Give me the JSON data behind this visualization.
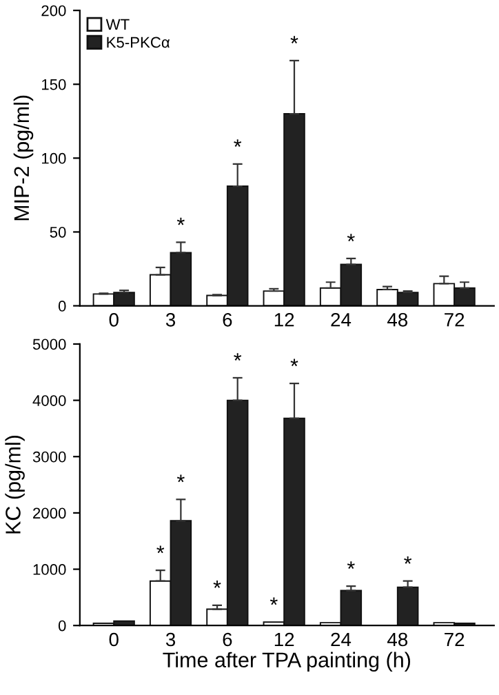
{
  "chart_data": [
    {
      "type": "bar",
      "ylabel": "MIP-2 (pg/ml)",
      "categories": [
        "0",
        "3",
        "6",
        "12",
        "24",
        "48",
        "72"
      ],
      "ylim": [
        0,
        200
      ],
      "yticks": [
        0,
        50,
        100,
        150,
        200
      ],
      "legend": "top left",
      "grid": false,
      "series": [
        {
          "name": "WT",
          "color": "#ffffff",
          "values": [
            8,
            21,
            7,
            10,
            12,
            11,
            15
          ],
          "errors": [
            [
              8,
              8.5
            ],
            [
              21,
              26
            ],
            [
              7,
              7.5
            ],
            [
              10,
              11.5
            ],
            [
              12,
              16
            ],
            [
              11,
              13
            ],
            [
              15,
              20
            ]
          ]
        },
        {
          "name": "K5-PKCα",
          "color": "#222222",
          "values": [
            9,
            36,
            81,
            130,
            28,
            9,
            12
          ],
          "errors": [
            [
              9,
              10.5
            ],
            [
              36,
              43
            ],
            [
              81,
              96
            ],
            [
              130,
              166
            ],
            [
              28,
              32
            ],
            [
              9,
              10
            ],
            [
              12,
              16
            ]
          ]
        }
      ],
      "annotations": [
        {
          "text": "*",
          "x": "3",
          "y": 36
        },
        {
          "text": "*",
          "x": "6",
          "y": 81
        },
        {
          "text": "*",
          "x": "12",
          "y": 166
        },
        {
          "text": "*",
          "x": "24",
          "y": 28
        }
      ]
    },
    {
      "type": "bar",
      "ylabel": "KC (pg/ml)",
      "xlabel": "Time after TPA painting (h)",
      "categories": [
        "0",
        "3",
        "6",
        "12",
        "24",
        "48",
        "72"
      ],
      "ylim": [
        0,
        5000
      ],
      "yticks": [
        0,
        1000,
        2000,
        3000,
        4000,
        5000
      ],
      "grid": false,
      "series": [
        {
          "color": "#ffffff",
          "values": [
            40,
            790,
            290,
            60,
            50,
            null,
            50
          ],
          "errors": [
            null,
            [
              790,
              980
            ],
            [
              290,
              360
            ],
            null,
            null,
            null,
            null
          ]
        },
        {
          "color": "#222222",
          "values": [
            80,
            1860,
            4000,
            3680,
            620,
            680,
            40
          ],
          "errors": [
            null,
            [
              1860,
              2240
            ],
            [
              4000,
              4400
            ],
            [
              3680,
              4300
            ],
            [
              620,
              700
            ],
            [
              680,
              790
            ],
            null
          ]
        }
      ],
      "annotations": [
        {
          "text": "*",
          "x": "3",
          "y": 790
        },
        {
          "text": "*",
          "x": "6",
          "y": 290
        },
        {
          "text": "*",
          "x": "12",
          "y": 60
        },
        {
          "text": "*",
          "x": "3",
          "y": 1860
        },
        {
          "text": "*",
          "x": "6",
          "y": 4000
        },
        {
          "text": "*",
          "x": "12",
          "y": 3680
        },
        {
          "text": "*",
          "x": "24",
          "y": 620
        },
        {
          "text": "*",
          "x": "48",
          "y": 680
        }
      ]
    }
  ]
}
